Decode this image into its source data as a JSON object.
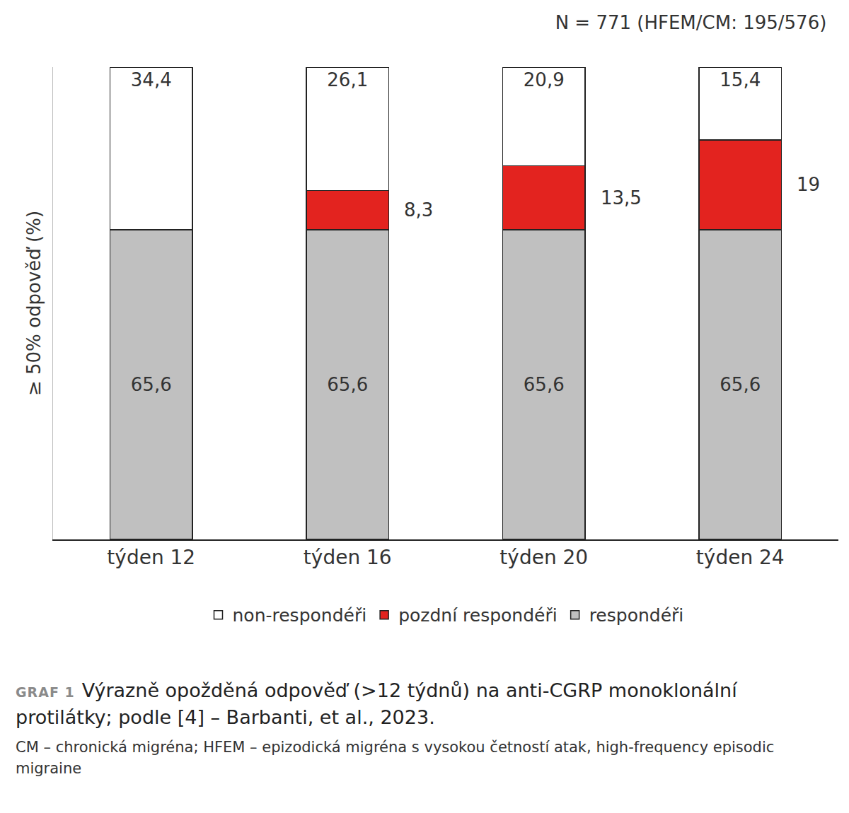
{
  "chart_data": {
    "type": "bar",
    "stacked": true,
    "subtitle": "N = 771 (HFEM/CM: 195/576)",
    "label": "GRAF 1",
    "title": "Výrazně opožděná odpověď (>12 týdnů) na anti-CGRP monoklonální protilátky; podle [4] – Barbanti, et al., 2023.",
    "note": "CM – chronická migréna; HFEM – epizodická migréna s vysokou četností atak, high-frequency episodic migraine",
    "y_label": "≥ 50% odpověď (%)",
    "categories": [
      "týden 12",
      "týden 16",
      "týden 20",
      "týden 24"
    ],
    "series": [
      {
        "name": "respondéři",
        "color": "#c0c0c0",
        "values": [
          65.6,
          65.6,
          65.6,
          65.6
        ],
        "value_labels": [
          "65,6",
          "65,6",
          "65,6",
          "65,6"
        ]
      },
      {
        "name": "pozdní respondéři",
        "color": "#e3231f",
        "values": [
          null,
          8.3,
          13.5,
          19
        ],
        "value_labels": [
          null,
          "8,3",
          "13,5",
          "19"
        ]
      },
      {
        "name": "non-respondéři",
        "color": "#ffffff",
        "values": [
          34.4,
          26.1,
          20.9,
          15.4
        ],
        "value_labels": [
          "34,4",
          "26,1",
          "20,9",
          "15,4"
        ]
      }
    ],
    "ylim": [
      0,
      100
    ],
    "yticks": [],
    "tick_labels": "x",
    "data_labels": true,
    "legend": "bottom",
    "grid": false
  }
}
